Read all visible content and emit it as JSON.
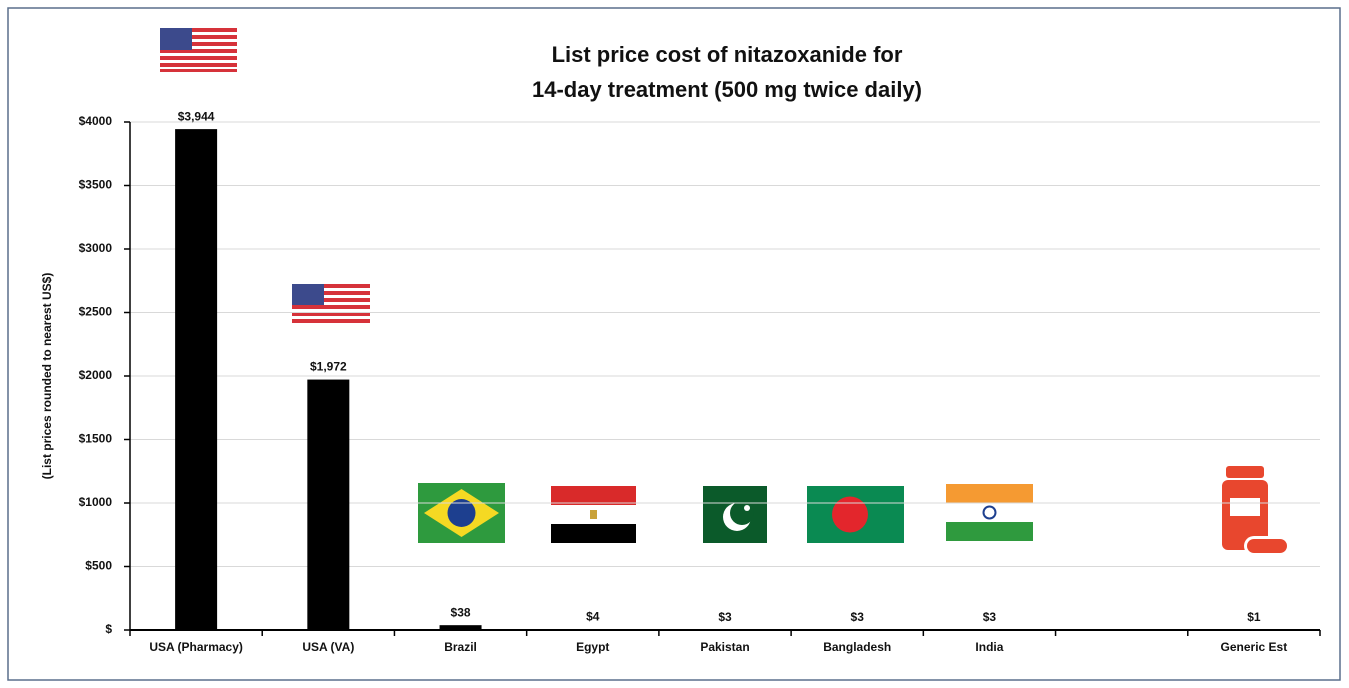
{
  "chart_data": {
    "type": "bar",
    "title": [
      "List price cost of nitazoxanide for",
      "14-day treatment (500 mg twice daily)"
    ],
    "y_label": "(List prices rounded to nearest US$)",
    "categories": [
      "USA (Pharmacy)",
      "USA (VA)",
      "Brazil",
      "Egypt",
      "Pakistan",
      "Bangladesh",
      "India",
      null,
      "Generic Est"
    ],
    "values": [
      3944,
      1972,
      38,
      4,
      3,
      3,
      3,
      null,
      1
    ],
    "value_labels": [
      "$3,944",
      "$1,972",
      "$38",
      "$4",
      "$3",
      "$3",
      "$3",
      null,
      "$1"
    ],
    "color": "#000000",
    "ylim": [
      0,
      4000
    ],
    "yticks": [
      {
        "value": 0,
        "label": "$"
      },
      {
        "value": 500,
        "label": "$500"
      },
      {
        "value": 1000,
        "label": "$1000"
      },
      {
        "value": 1500,
        "label": "$1500"
      },
      {
        "value": 2000,
        "label": "$2000"
      },
      {
        "value": 2500,
        "label": "$2500"
      },
      {
        "value": 3000,
        "label": "$3000"
      },
      {
        "value": 3500,
        "label": "$3500"
      },
      {
        "value": 4000,
        "label": "$4000"
      }
    ],
    "grid": true
  }
}
